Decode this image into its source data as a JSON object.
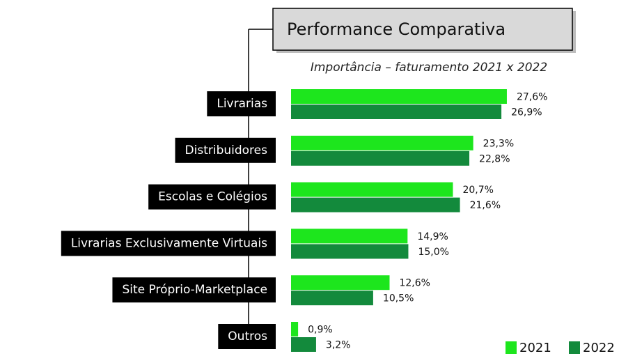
{
  "chart_data": {
    "type": "bar",
    "orientation": "horizontal",
    "title": "Performance Comparativa",
    "subtitle": "Importância – faturamento 2021 x 2022",
    "categories": [
      "Livrarias",
      "Distribuidores",
      "Escolas e Colégios",
      "Livrarias Exclusivamente Virtuais",
      "Site Próprio-Marketplace",
      "Outros"
    ],
    "series": [
      {
        "name": "2021",
        "color": "#1de61d",
        "values": [
          27.6,
          23.3,
          20.7,
          14.9,
          12.6,
          0.9
        ],
        "value_labels": [
          "27,6%",
          "23,3%",
          "20,7%",
          "14,9%",
          "12,6%",
          "0,9%"
        ]
      },
      {
        "name": "2022",
        "color": "#138a3c",
        "values": [
          26.9,
          22.8,
          21.6,
          15.0,
          10.5,
          3.2
        ],
        "value_labels": [
          "26,9%",
          "22,8%",
          "21,6%",
          "15,0%",
          "10,5%",
          "3,2%"
        ]
      }
    ],
    "legend": "bottom-right"
  }
}
